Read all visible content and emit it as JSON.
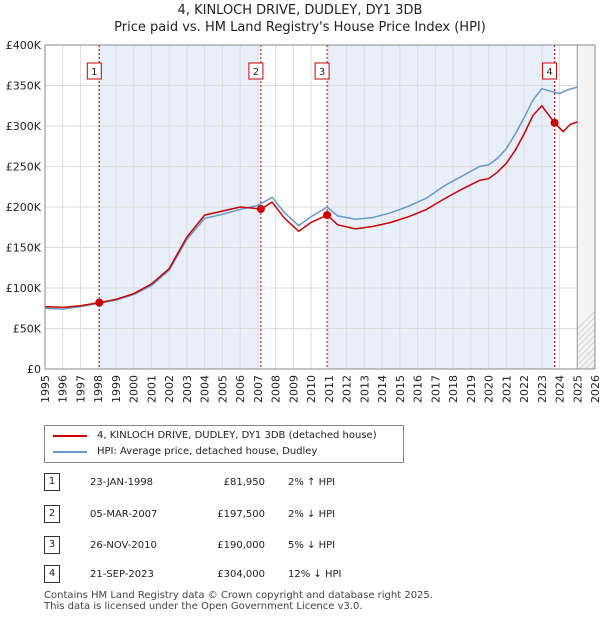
{
  "title": "4, KINLOCH DRIVE, DUDLEY, DY1 3DB",
  "subtitle": "Price paid vs. HM Land Registry's House Price Index (HPI)",
  "colors": {
    "price": "#cc0000",
    "hpi": "#6699cc",
    "sale_shade": "#e8eefa",
    "grid": "#dddddd"
  },
  "legend": {
    "price_label": "4, KINLOCH DRIVE, DUDLEY, DY1 3DB (detached house)",
    "hpi_label": "HPI: Average price, detached house, Dudley"
  },
  "table": [
    {
      "num": "1",
      "date": "23-JAN-1998",
      "price": "£81,950",
      "hpi": "2% ↑ HPI"
    },
    {
      "num": "2",
      "date": "05-MAR-2007",
      "price": "£197,500",
      "hpi": "2% ↓ HPI"
    },
    {
      "num": "3",
      "date": "26-NOV-2010",
      "price": "£190,000",
      "hpi": "5% ↓ HPI"
    },
    {
      "num": "4",
      "date": "21-SEP-2023",
      "price": "£304,000",
      "hpi": "12% ↓ HPI"
    }
  ],
  "footer": {
    "line1": "Contains HM Land Registry data © Crown copyright and database right 2025.",
    "line2": "This data is licensed under the Open Government Licence v3.0."
  },
  "chart_data": {
    "type": "line",
    "title": "4, KINLOCH DRIVE, DUDLEY, DY1 3DB",
    "subtitle": "Price paid vs. HM Land Registry's House Price Index (HPI)",
    "xlim": [
      1995,
      2026
    ],
    "ylim": [
      0,
      400000
    ],
    "x_ticks": [
      1995,
      1996,
      1997,
      1998,
      1999,
      2000,
      2001,
      2002,
      2003,
      2004,
      2005,
      2006,
      2007,
      2008,
      2009,
      2010,
      2011,
      2012,
      2013,
      2014,
      2015,
      2016,
      2017,
      2018,
      2019,
      2020,
      2021,
      2022,
      2023,
      2024,
      2025,
      2026
    ],
    "y_ticks": [
      0,
      50000,
      100000,
      150000,
      200000,
      250000,
      300000,
      350000,
      400000
    ],
    "y_tick_labels": [
      "£0",
      "£50K",
      "£100K",
      "£150K",
      "£200K",
      "£250K",
      "£300K",
      "£350K",
      "£400K"
    ],
    "grid": true,
    "future_hatch_from": 2025.0,
    "series": [
      {
        "name": "HPI: Average price, detached house, Dudley",
        "points": [
          [
            1995.0,
            75000
          ],
          [
            1996.0,
            74000
          ],
          [
            1997.0,
            77000
          ],
          [
            1998.0,
            81000
          ],
          [
            1999.0,
            85000
          ],
          [
            2000.0,
            92000
          ],
          [
            2001.0,
            103000
          ],
          [
            2002.0,
            122000
          ],
          [
            2003.0,
            160000
          ],
          [
            2004.0,
            186000
          ],
          [
            2005.0,
            191000
          ],
          [
            2006.0,
            197000
          ],
          [
            2007.0,
            202000
          ],
          [
            2007.8,
            212000
          ],
          [
            2008.5,
            193000
          ],
          [
            2009.3,
            177000
          ],
          [
            2010.0,
            188000
          ],
          [
            2010.9,
            200000
          ],
          [
            2011.5,
            189000
          ],
          [
            2012.5,
            185000
          ],
          [
            2013.5,
            187000
          ],
          [
            2014.5,
            193000
          ],
          [
            2015.5,
            201000
          ],
          [
            2016.5,
            211000
          ],
          [
            2017.5,
            226000
          ],
          [
            2018.5,
            238000
          ],
          [
            2019.5,
            250000
          ],
          [
            2020.0,
            252000
          ],
          [
            2020.5,
            260000
          ],
          [
            2021.0,
            272000
          ],
          [
            2021.5,
            290000
          ],
          [
            2022.0,
            310000
          ],
          [
            2022.5,
            332000
          ],
          [
            2023.0,
            346000
          ],
          [
            2023.5,
            343000
          ],
          [
            2024.0,
            340000
          ],
          [
            2024.5,
            345000
          ],
          [
            2025.0,
            348000
          ]
        ]
      },
      {
        "name": "4, KINLOCH DRIVE, DUDLEY, DY1 3DB (detached house)",
        "points": [
          [
            1995.0,
            77000
          ],
          [
            1996.0,
            76000
          ],
          [
            1997.0,
            78000
          ],
          [
            1998.06,
            81950
          ],
          [
            1999.0,
            86000
          ],
          [
            2000.0,
            93000
          ],
          [
            2001.0,
            105000
          ],
          [
            2002.0,
            124000
          ],
          [
            2003.0,
            163000
          ],
          [
            2004.0,
            190000
          ],
          [
            2005.0,
            195000
          ],
          [
            2006.0,
            200000
          ],
          [
            2007.17,
            197500
          ],
          [
            2007.8,
            206000
          ],
          [
            2008.5,
            186000
          ],
          [
            2009.3,
            170000
          ],
          [
            2010.0,
            181000
          ],
          [
            2010.9,
            190000
          ],
          [
            2011.5,
            178000
          ],
          [
            2012.5,
            173000
          ],
          [
            2013.5,
            176000
          ],
          [
            2014.5,
            181000
          ],
          [
            2015.5,
            188000
          ],
          [
            2016.5,
            197000
          ],
          [
            2017.5,
            210000
          ],
          [
            2018.5,
            222000
          ],
          [
            2019.5,
            233000
          ],
          [
            2020.0,
            235000
          ],
          [
            2020.5,
            243000
          ],
          [
            2021.0,
            254000
          ],
          [
            2021.5,
            270000
          ],
          [
            2022.0,
            290000
          ],
          [
            2022.5,
            313000
          ],
          [
            2023.0,
            325000
          ],
          [
            2023.72,
            304000
          ],
          [
            2024.2,
            293000
          ],
          [
            2024.6,
            302000
          ],
          [
            2025.0,
            305000
          ]
        ]
      }
    ],
    "sales": [
      {
        "label": "1",
        "x": 1998.06,
        "y": 81950
      },
      {
        "label": "2",
        "x": 2007.17,
        "y": 197500
      },
      {
        "label": "3",
        "x": 2010.9,
        "y": 190000
      },
      {
        "label": "4",
        "x": 2023.72,
        "y": 304000
      }
    ]
  }
}
